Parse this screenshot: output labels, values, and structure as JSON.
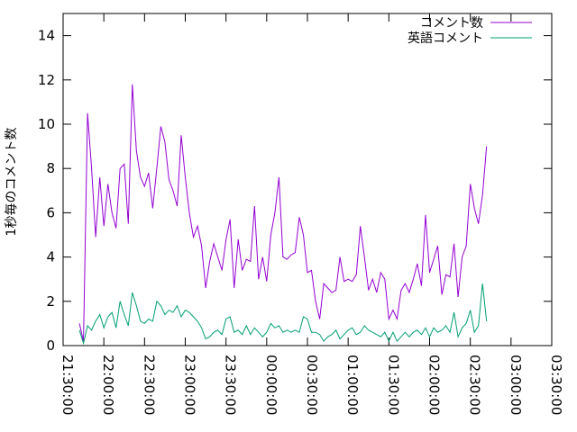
{
  "chart_data": {
    "type": "line",
    "title": "",
    "xlabel": "",
    "ylabel": "1秒毎のコメント数",
    "xlim": [
      "21:30:00",
      "03:30:00"
    ],
    "ylim": [
      0,
      15
    ],
    "yticks": [
      0,
      2,
      4,
      6,
      8,
      10,
      12,
      14
    ],
    "xticks": [
      "21:30:00",
      "22:00:00",
      "22:30:00",
      "23:00:00",
      "23:30:00",
      "00:00:00",
      "00:30:00",
      "01:00:00",
      "01:30:00",
      "02:00:00",
      "02:30:00",
      "03:00:00",
      "03:30:00"
    ],
    "grid": false,
    "legend_position": "top-right",
    "x_sample_interval_min": 3,
    "x_start": "21:42:00",
    "series": [
      {
        "name": "コメント数",
        "color": "#9400d3",
        "values": [
          1.0,
          0.2,
          10.5,
          8.0,
          4.9,
          7.6,
          5.4,
          7.3,
          6.0,
          5.3,
          8.0,
          8.2,
          5.5,
          11.8,
          8.8,
          7.6,
          7.2,
          7.8,
          6.2,
          8.0,
          9.9,
          9.2,
          7.5,
          7.0,
          6.3,
          9.5,
          7.6,
          6.0,
          4.9,
          5.4,
          4.5,
          2.6,
          3.8,
          4.6,
          4.0,
          3.4,
          4.8,
          5.7,
          2.6,
          4.8,
          3.4,
          3.9,
          3.8,
          6.3,
          3.0,
          4.0,
          2.9,
          5.0,
          6.0,
          7.6,
          4.0,
          3.9,
          4.1,
          4.2,
          5.8,
          5.0,
          3.3,
          3.4,
          2.0,
          1.2,
          2.8,
          2.6,
          2.4,
          2.5,
          4.0,
          2.9,
          3.0,
          2.9,
          3.2,
          5.4,
          4.0,
          2.5,
          3.0,
          2.4,
          3.3,
          3.0,
          1.2,
          1.6,
          1.2,
          2.5,
          2.8,
          2.4,
          3.0,
          3.7,
          2.7,
          5.9,
          3.3,
          3.9,
          4.5,
          2.3,
          3.2,
          3.1,
          4.6,
          2.2,
          4.0,
          4.5,
          7.3,
          6.2,
          5.5,
          6.8,
          9.0
        ]
      },
      {
        "name": "英語コメント",
        "color": "#009e73",
        "values": [
          0.7,
          0.1,
          0.9,
          0.7,
          1.1,
          1.4,
          0.8,
          1.3,
          1.5,
          0.8,
          2.0,
          1.4,
          0.9,
          2.4,
          1.8,
          1.1,
          1.0,
          1.2,
          1.1,
          2.0,
          1.8,
          1.4,
          1.6,
          1.5,
          1.8,
          1.3,
          1.6,
          1.5,
          1.3,
          1.1,
          0.8,
          0.3,
          0.4,
          0.6,
          0.7,
          0.5,
          1.2,
          1.3,
          0.6,
          0.7,
          0.5,
          0.9,
          0.5,
          0.8,
          0.6,
          0.4,
          0.6,
          1.0,
          0.8,
          0.9,
          0.6,
          0.7,
          0.6,
          0.7,
          0.6,
          1.3,
          1.2,
          0.6,
          0.6,
          0.5,
          0.2,
          0.4,
          0.5,
          0.7,
          0.3,
          0.5,
          0.7,
          0.8,
          0.5,
          0.6,
          0.9,
          0.7,
          0.6,
          0.5,
          0.4,
          0.6,
          0.2,
          0.6,
          0.2,
          0.4,
          0.6,
          0.4,
          0.6,
          0.7,
          0.5,
          0.8,
          0.4,
          0.8,
          0.6,
          0.7,
          0.9,
          0.6,
          1.5,
          0.4,
          0.8,
          1.0,
          1.6,
          0.6,
          0.9,
          2.8,
          1.1
        ]
      }
    ]
  }
}
